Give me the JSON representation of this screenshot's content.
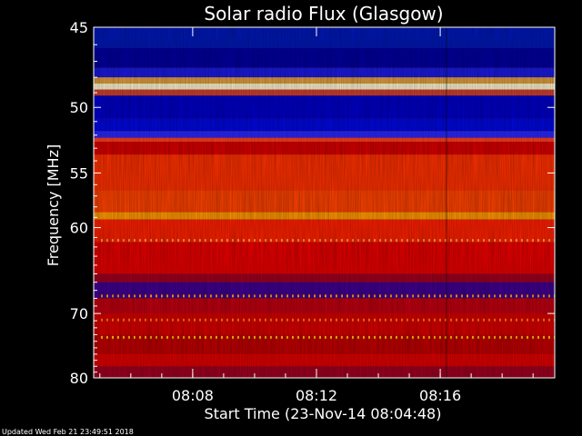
{
  "chart_data": {
    "type": "heatmap",
    "title": "Solar radio Flux (Glasgow)",
    "xlabel": "Start Time (23-Nov-14 08:04:48)",
    "ylabel": "Frequency [MHz]",
    "x_ticks": [
      "08:08",
      "08:12",
      "08:16"
    ],
    "x_tick_values_min": [
      8.0,
      12.0,
      16.0
    ],
    "xlim_min": [
      4.8,
      19.7
    ],
    "y_ticks": [
      45,
      50,
      55,
      60,
      70,
      80
    ],
    "ylim": [
      45,
      80
    ],
    "y_scale": "reciprocal",
    "discontinuity_min": 16.2,
    "colorscale": [
      "#000080",
      "#0000ff",
      "#8000a0",
      "#c00000",
      "#ff2000",
      "#ff6000",
      "#ffc000",
      "#ffffc0"
    ],
    "bands": [
      {
        "from": 45.0,
        "to": 46.2,
        "color": "#0018b8"
      },
      {
        "from": 46.2,
        "to": 47.4,
        "color": "#0000a0"
      },
      {
        "from": 47.4,
        "to": 48.0,
        "color": "#1a1ae0"
      },
      {
        "from": 48.0,
        "to": 48.4,
        "color": "#e0a040"
      },
      {
        "from": 48.4,
        "to": 48.8,
        "color": "#fff6d0"
      },
      {
        "from": 48.8,
        "to": 49.2,
        "color": "#d04030"
      },
      {
        "from": 49.2,
        "to": 50.8,
        "color": "#0000c8"
      },
      {
        "from": 50.8,
        "to": 51.7,
        "color": "#0008e0"
      },
      {
        "from": 51.7,
        "to": 52.2,
        "color": "#2828ff"
      },
      {
        "from": 52.2,
        "to": 52.5,
        "color": "#ff4020"
      },
      {
        "from": 52.5,
        "to": 53.5,
        "color": "#d80000"
      },
      {
        "from": 53.5,
        "to": 56.5,
        "color": "#ff3000"
      },
      {
        "from": 56.5,
        "to": 58.5,
        "color": "#ff4200"
      },
      {
        "from": 58.5,
        "to": 59.2,
        "color": "#ff9a00"
      },
      {
        "from": 59.2,
        "to": 61.5,
        "color": "#ff2000"
      },
      {
        "from": 61.5,
        "to": 65.0,
        "color": "#e80000"
      },
      {
        "from": 65.0,
        "to": 66.0,
        "color": "#a00020"
      },
      {
        "from": 66.0,
        "to": 68.0,
        "color": "#400090"
      },
      {
        "from": 68.0,
        "to": 70.0,
        "color": "#c00010"
      },
      {
        "from": 70.0,
        "to": 73.0,
        "color": "#d80000"
      },
      {
        "from": 73.0,
        "to": 76.0,
        "color": "#c00000"
      },
      {
        "from": 76.0,
        "to": 78.0,
        "color": "#e00000"
      },
      {
        "from": 78.0,
        "to": 80.0,
        "color": "#a00020"
      }
    ],
    "stripes": [
      {
        "freq": 61.3,
        "color": "#ffa040"
      },
      {
        "freq": 67.7,
        "color": "#ffa000"
      },
      {
        "freq": 70.9,
        "color": "#ff8000"
      },
      {
        "freq": 73.4,
        "color": "#ffc000"
      }
    ]
  },
  "footer": {
    "updated": "Updated Wed Feb 21 23:49:51 2018"
  }
}
